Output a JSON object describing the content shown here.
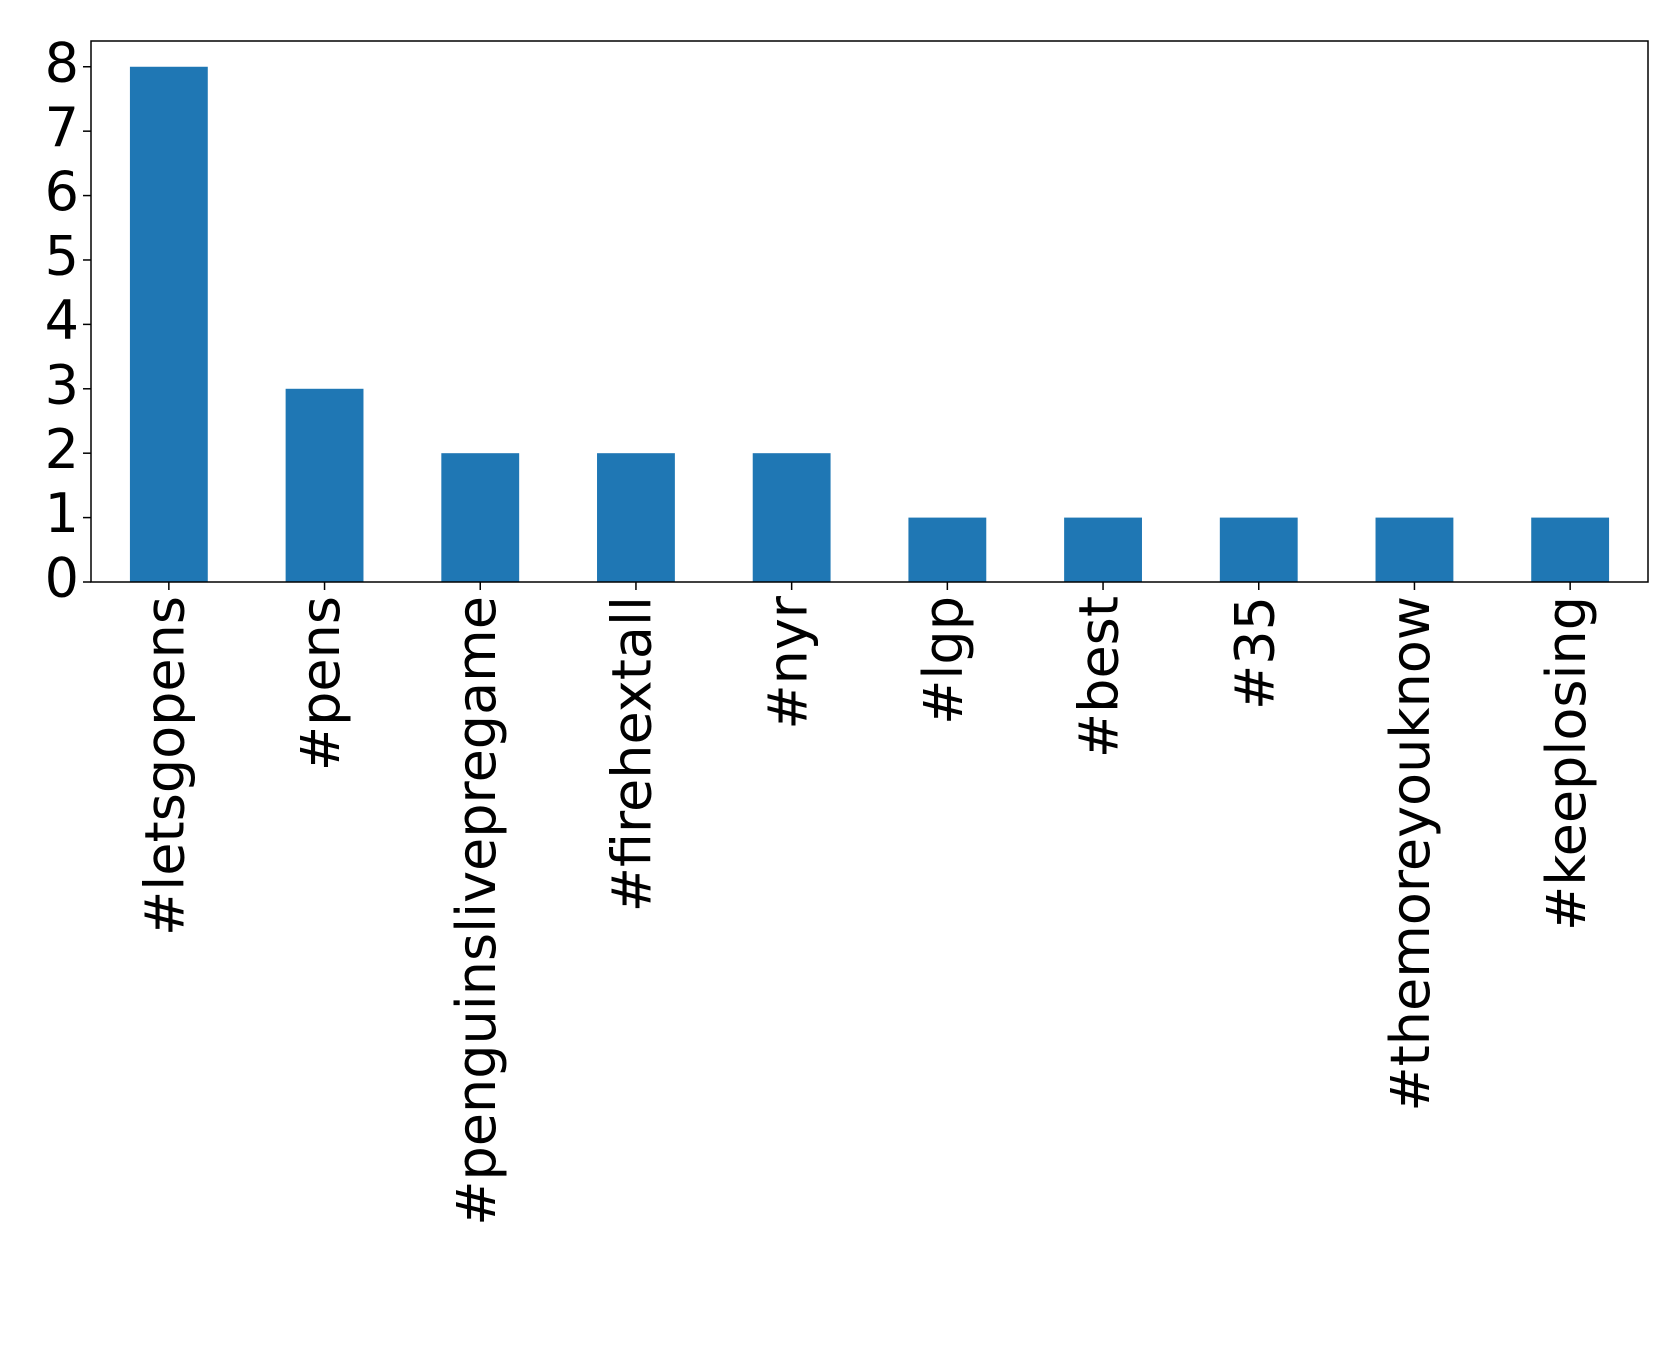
{
  "chart_data": {
    "type": "bar",
    "categories": [
      "#letsgopens",
      "#pens",
      "#penguinslivepregame",
      "#firehextall",
      "#nyr",
      "#lgp",
      "#best",
      "#35",
      "#themoreyouknow",
      "#keeplosing"
    ],
    "values": [
      8,
      3,
      2,
      2,
      2,
      1,
      1,
      1,
      1,
      1
    ],
    "color": "#1f77b4",
    "ylim": [
      0,
      8.4
    ],
    "yticks": [
      0,
      1,
      2,
      3,
      4,
      5,
      6,
      7,
      8
    ],
    "grid": false
  }
}
